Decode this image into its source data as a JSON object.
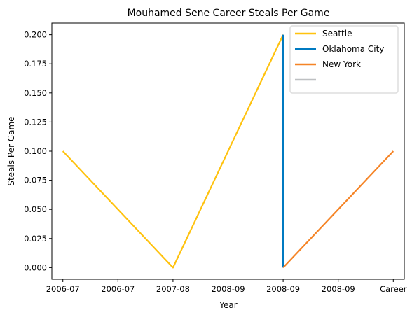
{
  "chart_data": {
    "type": "line",
    "title": "Mouhamed Sene Career Steals Per Game",
    "xlabel": "Year",
    "ylabel": "Steals Per Game",
    "x_tick_labels": [
      "2006-07",
      "2006-07",
      "2007-08",
      "2008-09",
      "2008-09",
      "2008-09",
      "Career"
    ],
    "x_positions": [
      0,
      1,
      2,
      3,
      4,
      5,
      6
    ],
    "xlim": [
      -0.2,
      6.2
    ],
    "ylim": [
      -0.01,
      0.21
    ],
    "y_ticks": [
      0.0,
      0.025,
      0.05,
      0.075,
      0.1,
      0.125,
      0.15,
      0.175,
      0.2
    ],
    "y_tick_labels": [
      "0.000",
      "0.025",
      "0.050",
      "0.075",
      "0.100",
      "0.125",
      "0.150",
      "0.175",
      "0.200"
    ],
    "grid": false,
    "legend_position": "top-right",
    "series": [
      {
        "name": "Seattle",
        "color": "#FFC20E",
        "points": [
          [
            0,
            0.1
          ],
          [
            2,
            0.0
          ],
          [
            4,
            0.2
          ]
        ]
      },
      {
        "name": "Oklahoma City",
        "color": "#007AC1",
        "points": [
          [
            4,
            0.0
          ],
          [
            4,
            0.2
          ]
        ]
      },
      {
        "name": "New York",
        "color": "#F58426",
        "points": [
          [
            4,
            0.0
          ],
          [
            6,
            0.1
          ]
        ]
      },
      {
        "name": "",
        "color": "#BEC0C2",
        "points": []
      }
    ]
  }
}
